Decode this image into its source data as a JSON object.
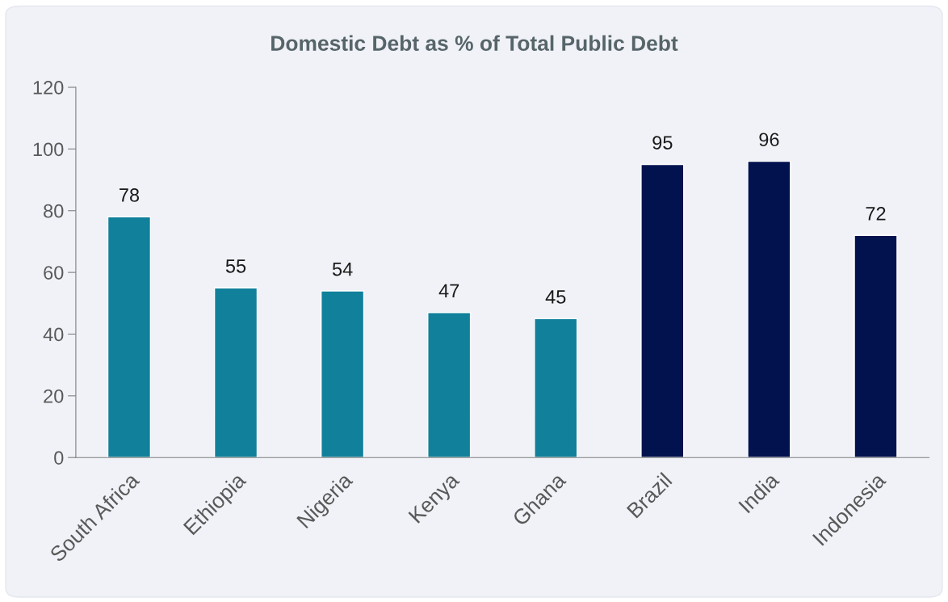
{
  "chart_data": {
    "type": "bar",
    "title": "Domestic Debt as % of Total Public Debt",
    "categories": [
      "South Africa",
      "Ethiopia",
      "Nigeria",
      "Kenya",
      "Ghana",
      "Brazil",
      "India",
      "Indonesia"
    ],
    "values": [
      78,
      55,
      54,
      47,
      45,
      95,
      96,
      72
    ],
    "colors": [
      "#11809b",
      "#11809b",
      "#11809b",
      "#11809b",
      "#11809b",
      "#02124f",
      "#02124f",
      "#02124f"
    ],
    "ylim": [
      0,
      120
    ],
    "yticks": [
      0,
      20,
      40,
      60,
      80,
      100,
      120
    ],
    "grid": false,
    "data_labels": true
  }
}
